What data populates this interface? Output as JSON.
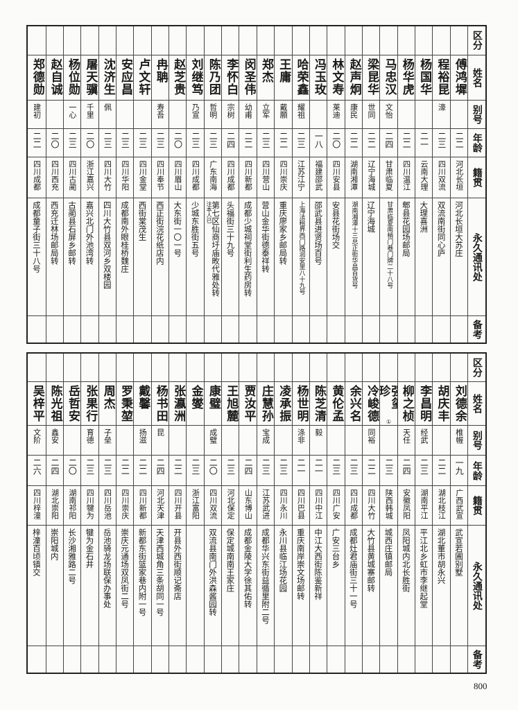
{
  "headers": [
    "区分",
    "姓名",
    "别号",
    "年龄",
    "籍贯",
    "永久通讯处",
    "备考"
  ],
  "upper": [
    {
      "name": "傅鸿墀",
      "alias": "",
      "age": "二二",
      "native": "河北长垣",
      "address": "河北长垣大苏庄"
    },
    {
      "name": "程裕昆",
      "alias": "濠",
      "age": "二三",
      "native": "四川双流",
      "address": "双流南街同心庐"
    },
    {
      "name": "杨国华",
      "alias": "",
      "age": "二一",
      "native": "云南大理",
      "address": "大理喜洲"
    },
    {
      "name": "杨华虎",
      "alias": "",
      "age": "二二",
      "native": "四川温江",
      "address": "郫县花园场邮局"
    },
    {
      "name": "马忠汉",
      "alias": "文怡",
      "age": "二四",
      "native": "甘肃临夏",
      "address": "甘肃临夏南梢门巷门牌二十八号"
    },
    {
      "name": "梁昆华",
      "alias": "世同",
      "age": "二二",
      "native": "辽宁海城",
      "address": "辽宁海城"
    },
    {
      "name": "赵声炯",
      "alias": "康民",
      "age": "二二",
      "native": "湖南湘潭",
      "address": "湖南湘潭十三总正街华昌百货号"
    },
    {
      "name": "林文寿",
      "alias": "莱迪",
      "age": "二〇",
      "native": "四川安县",
      "address": "安县花街场交"
    },
    {
      "name": "冯玉玫",
      "alias": "",
      "age": "一八",
      "native": "福建邵武",
      "address": "邵武县进贤场百号"
    },
    {
      "name": "哈荣鑫",
      "alias": "耀祖",
      "age": "二三",
      "native": "江苏江宁",
      "address": "上海法租界西门路润安里八十九号"
    },
    {
      "name": "王庸",
      "alias": "戴願",
      "age": "二二",
      "native": "四川崇庆",
      "address": "重庆廖家乡邮局转"
    },
    {
      "name": "郑杰",
      "alias": "立军",
      "age": "二三",
      "native": "四川营山",
      "address": "营山金华街德泰祥转"
    },
    {
      "name": "闵圣伟",
      "alias": "幼甫",
      "age": "二二",
      "native": "四川新都",
      "address": "成都少城祠堂街利生药房转"
    },
    {
      "name": "李怀白",
      "alias": "宗树",
      "age": "二四",
      "native": "四川成都",
      "address": "头福街三十九号"
    },
    {
      "name": "陈乃团",
      "alias": "哲明",
      "age": "二三",
      "native": "广东南海",
      "address": "第七区仙商圩庙畋代雅处转",
      "note": "注本人已"
    },
    {
      "name": "刘继笃",
      "alias": "乃宣",
      "age": "二三",
      "native": "四川成都",
      "address": "少城东胜街五号"
    },
    {
      "name": "赵芝贵",
      "alias": "",
      "age": "二〇",
      "native": "四川眉山",
      "address": "大东街一〇一号"
    },
    {
      "name": "冉聃",
      "alias": "寿吾",
      "age": "二三",
      "native": "四川奉节",
      "address": "西正街浣花纸店内"
    },
    {
      "name": "卢文轩",
      "alias": "",
      "age": "二三",
      "native": "四川金堂",
      "address": "西街棠茂生"
    },
    {
      "name": "安应昌",
      "alias": "",
      "age": "二三",
      "native": "四川华阳",
      "address": "成都南外眼桂桥魏庄"
    },
    {
      "name": "沈济生",
      "alias": "佩",
      "age": "二三",
      "native": "四川大竹",
      "address": "四川大竹县双河乡双楼园"
    },
    {
      "name": "屠天骥",
      "alias": "千里",
      "age": "二〇",
      "native": "浙江嘉兴",
      "address": "嘉兴北门外池湾转"
    },
    {
      "name": "杨位勋",
      "alias": "一心",
      "age": "二三",
      "native": "四川古蔺",
      "address": "古蔺县石屏乡邮转"
    },
    {
      "name": "赵自诚",
      "alias": "",
      "age": "二〇",
      "native": "四川西充",
      "address": "西充迁林场邮局转"
    },
    {
      "name": "郑德勋",
      "alias": "建初",
      "age": "二二",
      "native": "四川成都",
      "address": "成都童子街三十八号"
    }
  ],
  "lower": [
    {
      "name": "刘德余",
      "alias": "椎幄",
      "age": "一九",
      "native": "广西武宣",
      "address": "武宣若圃别墅"
    },
    {
      "name": "胡庆丰",
      "alias": "",
      "age": "二二",
      "native": "湖北枝江",
      "address": "湖北董市胡永兴"
    },
    {
      "name": "李昌明",
      "alias": "经武",
      "age": "二三",
      "native": "湖南平江",
      "address": "平江北乡虹市李继起堂"
    },
    {
      "name": "柳之桢",
      "alias": "天任",
      "age": "二四",
      "native": "安徽凤阳",
      "address": "凤阳城内北长胜街"
    },
    {
      "name": "强玺珍",
      "name_note": "①",
      "alias": "",
      "age": "二三",
      "native": "陕西韩城",
      "address": "城西庄镇邮局"
    },
    {
      "name": "冷峻德",
      "alias": "同裕",
      "age": "二二",
      "native": "四川大竹",
      "address": "大竹县黄城寨邮转"
    },
    {
      "name": "余兴名",
      "alias": "",
      "age": "二三",
      "native": "四川成都",
      "address": "成都灶君庙街三十一号"
    },
    {
      "name": "黄伦孟",
      "alias": "",
      "age": "二三",
      "native": "四川广安",
      "address": "广安三台乡"
    },
    {
      "name": "陈芝清",
      "alias": "毅",
      "age": "二一",
      "native": "四川中江",
      "address": "中江大西街陈鉴新祥"
    },
    {
      "name": "杨世明",
      "alias": "涤非",
      "age": "二一",
      "native": "四川巴县",
      "address": "重庆南岸崇文场邮转"
    },
    {
      "name": "凌承振",
      "alias": "",
      "age": "二三",
      "native": "四川永川",
      "address": "永川县临江场花园"
    },
    {
      "name": "庄慧孙",
      "alias": "宝成",
      "age": "二三",
      "native": "江苏武进",
      "address": "成都华兴东街益循里附二号"
    },
    {
      "name": "贾汝平",
      "alias": "",
      "age": "二四",
      "native": "山东博山",
      "address": "成都金陵大学徐其佑转"
    },
    {
      "name": "王旭麓",
      "alias": "",
      "age": "二三",
      "native": "河北保定",
      "address": "保定城南南王家庄"
    },
    {
      "name": "康璧",
      "alias": "成璧",
      "age": "二〇",
      "native": "四川双流",
      "address": "双流县南门外洪森酱园转"
    },
    {
      "name": "金燮",
      "alias": "",
      "age": "二三",
      "native": "浙江富阳",
      "address": ""
    },
    {
      "name": "张瀛洲",
      "alias": "",
      "age": "二二",
      "native": "四川开县",
      "address": "开县外西街顺记斋店"
    },
    {
      "name": "杨书田",
      "alias": "昆",
      "age": "二四",
      "native": "河北天津",
      "address": "天津西城角三条胡同一号"
    },
    {
      "name": "戴馨",
      "alias": "扬滋",
      "age": "二二",
      "native": "四川新都",
      "address": "新都东街篮家巷内附一号"
    },
    {
      "name": "罗秉堃",
      "alias": "",
      "age": "二二",
      "native": "四川崇庆",
      "address": "崇庆元通场双凤街二号"
    },
    {
      "name": "周杰",
      "alias": "子垒",
      "age": "二三",
      "native": "四川岳池",
      "address": "岳池骑龙场联保办事处"
    },
    {
      "name": "张果行",
      "alias": "育德",
      "age": "二三",
      "native": "四川犍为",
      "address": "犍为金石井"
    },
    {
      "name": "岳哲安",
      "alias": "",
      "age": "二〇",
      "native": "湖南祁阳",
      "address": "长沙湘雅路二号"
    },
    {
      "name": "陈光祖",
      "alias": "鑫安",
      "age": "二四",
      "native": "湖北崇阳",
      "address": "崇阳城内"
    },
    {
      "name": "吴梓平",
      "alias": "文阶",
      "age": "二六",
      "native": "四川梓潼",
      "address": "梓潼百顷镇交"
    }
  ],
  "page_number": "800"
}
